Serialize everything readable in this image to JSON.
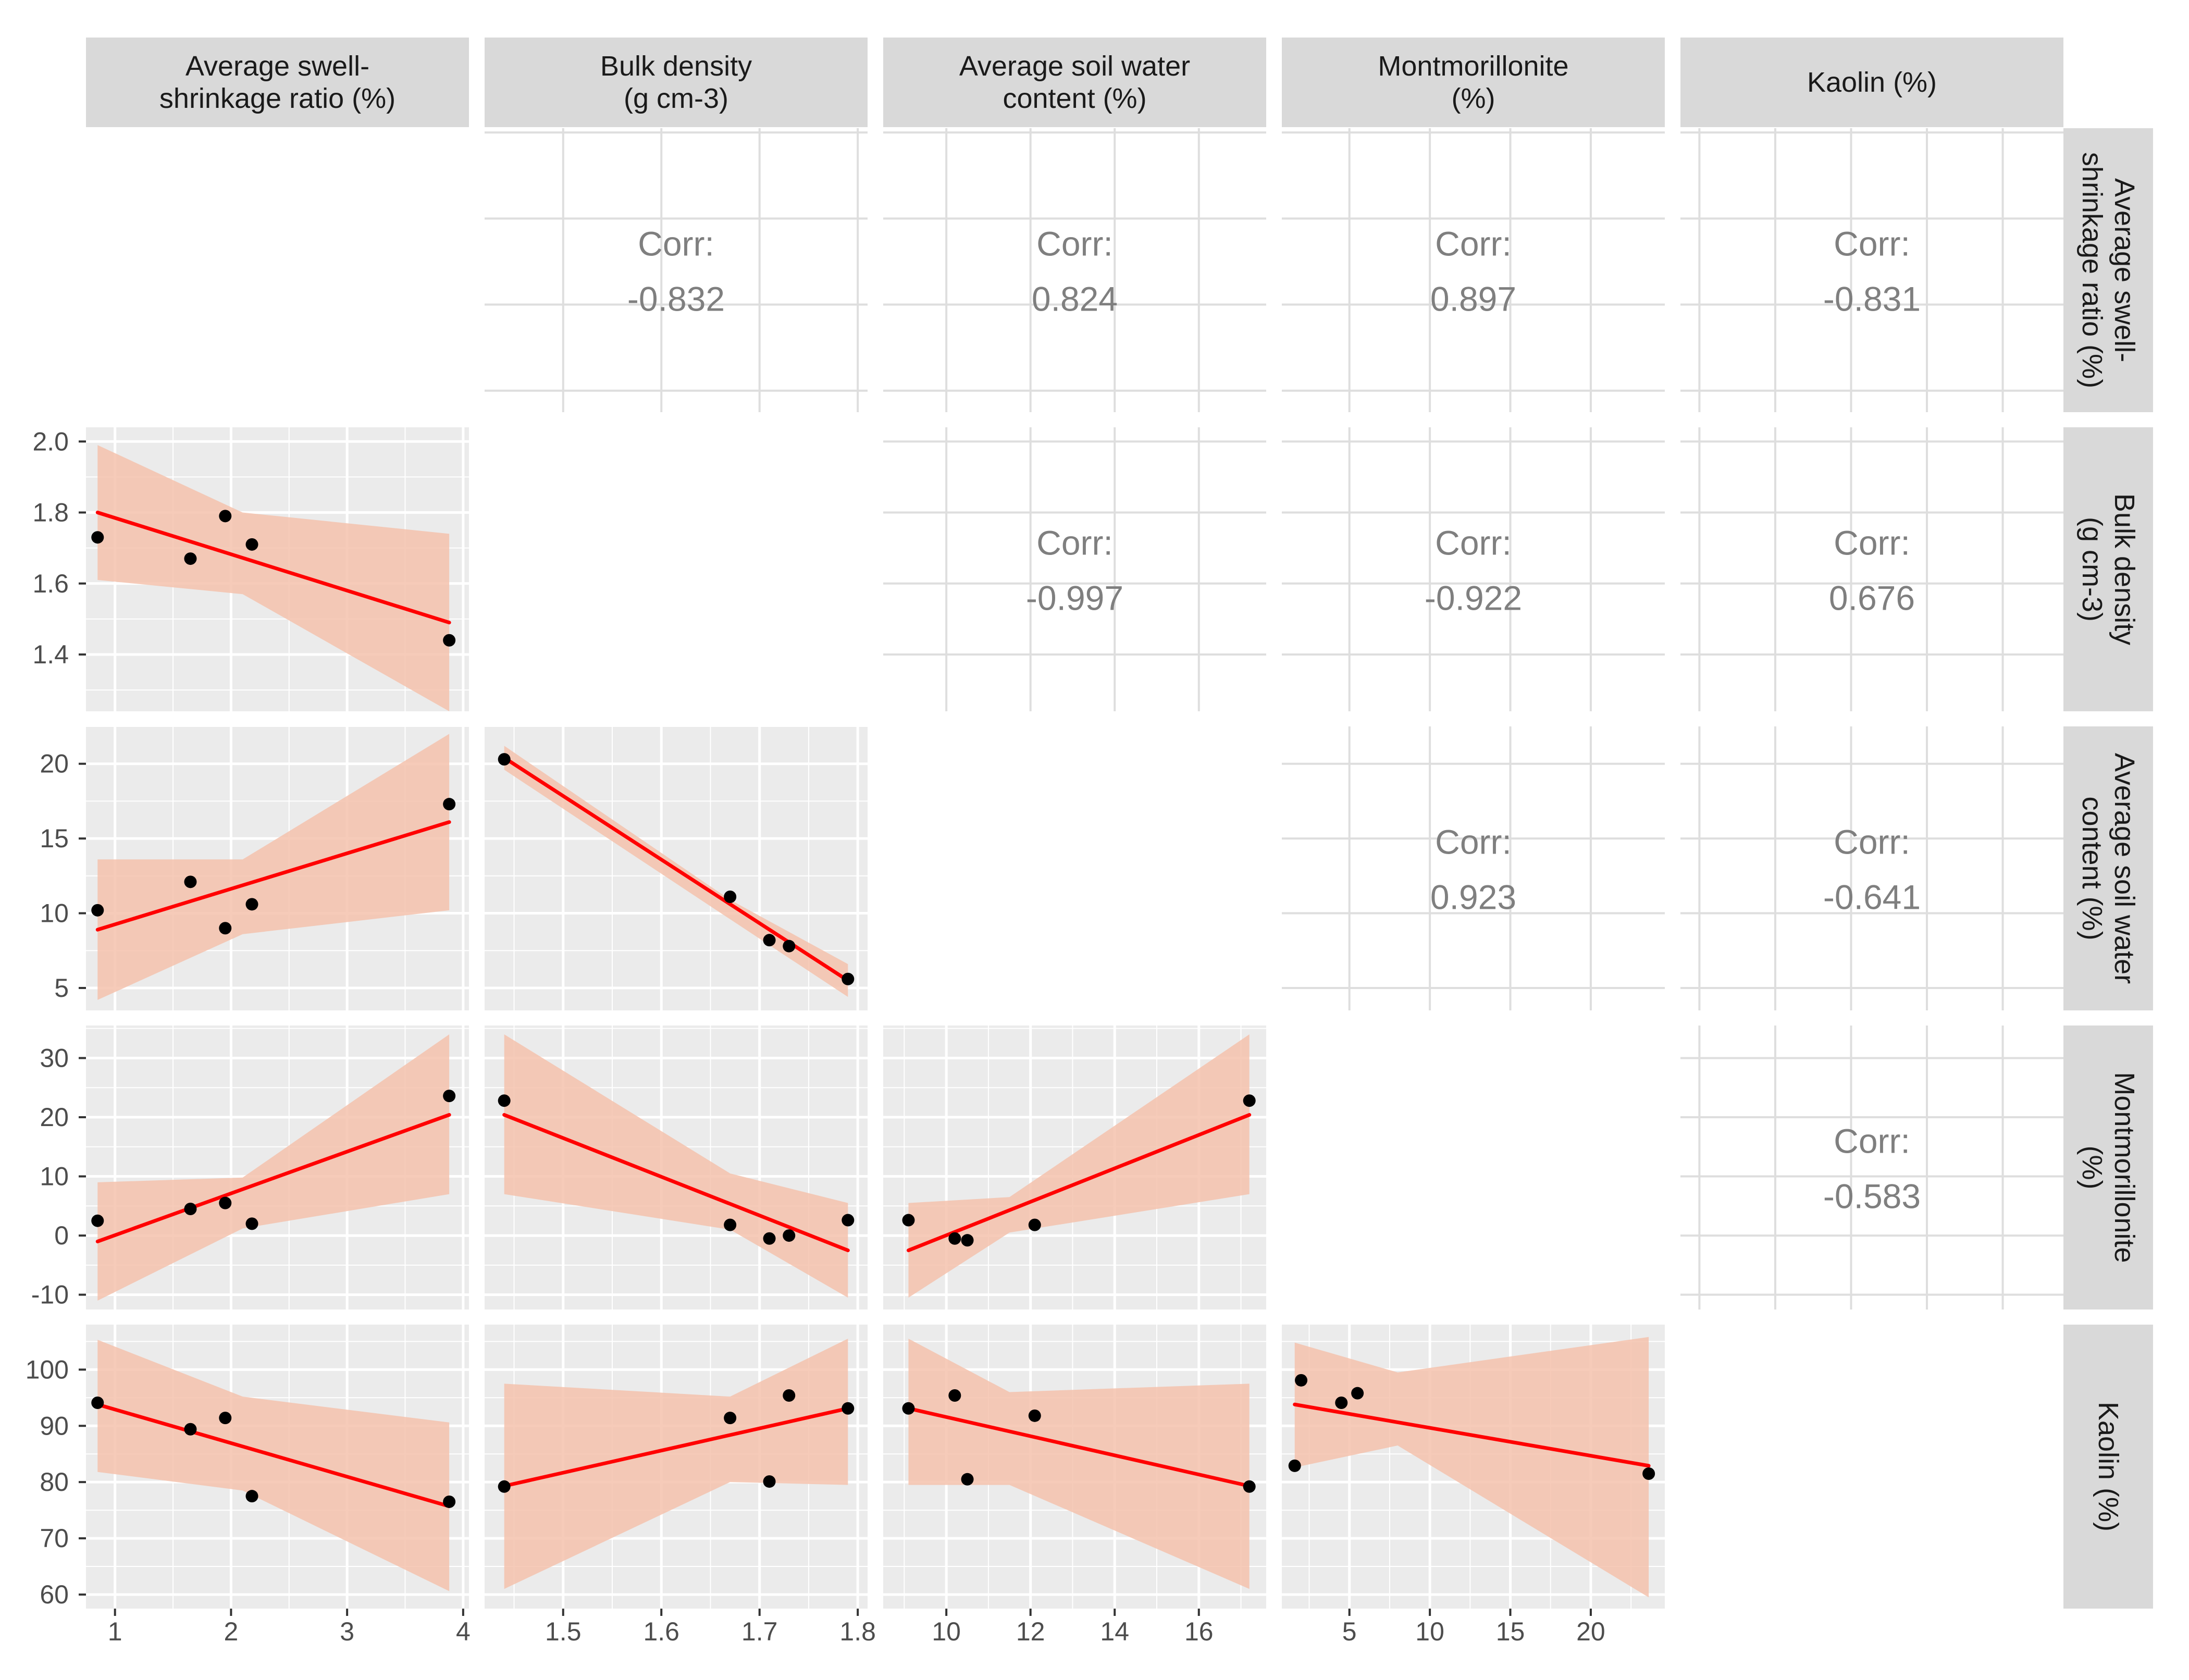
{
  "chart_data": {
    "type": "scatter-matrix",
    "title": "",
    "variables": [
      {
        "label": "Average swell-\nshrinkage ratio (%)",
        "row_label": "Average swell-\nshrinkage ratio (%)",
        "range": [
          0.75,
          4.05
        ],
        "ticks": [
          1,
          2,
          3,
          4
        ],
        "tick_labels": [
          "1",
          "2",
          "3",
          "4"
        ]
      },
      {
        "label": "Bulk density\n(g cm-3)",
        "row_label": "Bulk density\n(g cm-3)",
        "range": [
          1.24,
          2.04
        ],
        "ticks": [
          1.4,
          1.6,
          1.8,
          2.0
        ],
        "tick_labels": [
          "1.4",
          "1.6",
          "1.8",
          "2.0"
        ],
        "x_range": [
          1.42,
          1.81
        ],
        "x_ticks": [
          1.5,
          1.6,
          1.7,
          1.8
        ],
        "x_tick_labels": [
          "1.5",
          "1.6",
          "1.7",
          "1.8"
        ]
      },
      {
        "label": "Average soil water\ncontent (%)",
        "row_label": "Average soil water\ncontent (%)",
        "range": [
          3.5,
          22.5
        ],
        "ticks": [
          5,
          10,
          15,
          20
        ],
        "tick_labels": [
          "5",
          "10",
          "15",
          "20"
        ],
        "x_range": [
          8.5,
          17.6
        ],
        "x_ticks": [
          10,
          12,
          14,
          16
        ],
        "x_tick_labels": [
          "10",
          "12",
          "14",
          "16"
        ]
      },
      {
        "label": "Montmorillonite\n(%)",
        "row_label": "Montmorillonite\n(%)",
        "range": [
          -12.5,
          35.5
        ],
        "ticks": [
          -10,
          0,
          10,
          20,
          30
        ],
        "tick_labels": [
          "-10",
          "0",
          "10",
          "20",
          "30"
        ],
        "x_range": [
          0.8,
          24.6
        ],
        "x_ticks": [
          5,
          10,
          15,
          20
        ],
        "x_tick_labels": [
          "5",
          "10",
          "15",
          "20"
        ]
      },
      {
        "label": "Kaolin (%)",
        "row_label": "Kaolin (%)",
        "range": [
          57.5,
          108
        ],
        "ticks": [
          60,
          70,
          80,
          90,
          100
        ],
        "tick_labels": [
          "60",
          "70",
          "80",
          "90",
          "100"
        ]
      }
    ],
    "correlations": [
      {
        "row": 0,
        "col": 1,
        "label": "Corr:",
        "value": "-0.832"
      },
      {
        "row": 0,
        "col": 2,
        "label": "Corr:",
        "value": "0.824"
      },
      {
        "row": 0,
        "col": 3,
        "label": "Corr:",
        "value": "0.897"
      },
      {
        "row": 0,
        "col": 4,
        "label": "Corr:",
        "value": "-0.831"
      },
      {
        "row": 1,
        "col": 2,
        "label": "Corr:",
        "value": "-0.997"
      },
      {
        "row": 1,
        "col": 3,
        "label": "Corr:",
        "value": "-0.922"
      },
      {
        "row": 1,
        "col": 4,
        "label": "Corr:",
        "value": "0.676"
      },
      {
        "row": 2,
        "col": 3,
        "label": "Corr:",
        "value": "0.923"
      },
      {
        "row": 2,
        "col": 4,
        "label": "Corr:",
        "value": "-0.641"
      },
      {
        "row": 3,
        "col": 4,
        "label": "Corr:",
        "value": "-0.583"
      }
    ],
    "scatter_panels": [
      {
        "row": 1,
        "col": 0,
        "points": [
          [
            0.85,
            1.73
          ],
          [
            1.65,
            1.67
          ],
          [
            1.95,
            1.79
          ],
          [
            2.18,
            1.71
          ],
          [
            3.88,
            1.44
          ]
        ],
        "fit": [
          [
            0.85,
            1.8
          ],
          [
            3.88,
            1.49
          ]
        ],
        "band_upper": [
          [
            0.85,
            1.99
          ],
          [
            2.1,
            1.8
          ],
          [
            3.88,
            1.74
          ]
        ],
        "band_lower": [
          [
            0.85,
            1.61
          ],
          [
            2.1,
            1.57
          ],
          [
            3.88,
            1.24
          ]
        ]
      },
      {
        "row": 2,
        "col": 0,
        "points": [
          [
            0.85,
            10.2
          ],
          [
            1.65,
            12.1
          ],
          [
            1.95,
            9.0
          ],
          [
            2.18,
            10.6
          ],
          [
            3.88,
            17.3
          ]
        ],
        "fit": [
          [
            0.85,
            8.9
          ],
          [
            3.88,
            16.1
          ]
        ],
        "band_upper": [
          [
            0.85,
            13.6
          ],
          [
            2.1,
            13.6
          ],
          [
            3.88,
            22.0
          ]
        ],
        "band_lower": [
          [
            0.85,
            4.2
          ],
          [
            2.1,
            8.6
          ],
          [
            3.88,
            10.2
          ]
        ]
      },
      {
        "row": 2,
        "col": 1,
        "points": [
          [
            1.44,
            20.3
          ],
          [
            1.67,
            11.1
          ],
          [
            1.71,
            8.2
          ],
          [
            1.73,
            7.8
          ],
          [
            1.79,
            5.6
          ]
        ],
        "fit": [
          [
            1.44,
            20.4
          ],
          [
            1.79,
            5.5
          ]
        ],
        "band_upper": [
          [
            1.44,
            21.2
          ],
          [
            1.67,
            10.9
          ],
          [
            1.79,
            6.6
          ]
        ],
        "band_lower": [
          [
            1.44,
            19.6
          ],
          [
            1.67,
            9.6
          ],
          [
            1.79,
            4.4
          ]
        ]
      },
      {
        "row": 3,
        "col": 0,
        "points": [
          [
            0.85,
            2.5
          ],
          [
            1.65,
            4.5
          ],
          [
            1.95,
            5.5
          ],
          [
            2.18,
            2.0
          ],
          [
            3.88,
            23.6
          ]
        ],
        "fit": [
          [
            0.85,
            -1.0
          ],
          [
            3.88,
            20.4
          ]
        ],
        "band_upper": [
          [
            0.85,
            9.0
          ],
          [
            2.1,
            9.8
          ],
          [
            3.88,
            34.0
          ]
        ],
        "band_lower": [
          [
            0.85,
            -11.0
          ],
          [
            2.1,
            1.2
          ],
          [
            3.88,
            7.0
          ]
        ]
      },
      {
        "row": 3,
        "col": 1,
        "points": [
          [
            1.44,
            22.8
          ],
          [
            1.67,
            1.8
          ],
          [
            1.71,
            -0.5
          ],
          [
            1.73,
            0.0
          ],
          [
            1.79,
            2.6
          ]
        ],
        "fit": [
          [
            1.44,
            20.4
          ],
          [
            1.79,
            -2.5
          ]
        ],
        "band_upper": [
          [
            1.44,
            34.0
          ],
          [
            1.67,
            10.5
          ],
          [
            1.79,
            5.5
          ]
        ],
        "band_lower": [
          [
            1.44,
            7.0
          ],
          [
            1.67,
            1.0
          ],
          [
            1.79,
            -10.5
          ]
        ]
      },
      {
        "row": 3,
        "col": 2,
        "points": [
          [
            9.1,
            2.6
          ],
          [
            10.2,
            -0.5
          ],
          [
            10.5,
            -0.8
          ],
          [
            12.1,
            1.8
          ],
          [
            17.2,
            22.8
          ]
        ],
        "fit": [
          [
            9.1,
            -2.5
          ],
          [
            17.2,
            20.4
          ]
        ],
        "band_upper": [
          [
            9.1,
            5.5
          ],
          [
            11.5,
            6.5
          ],
          [
            17.2,
            34.0
          ]
        ],
        "band_lower": [
          [
            9.1,
            -10.5
          ],
          [
            11.5,
            0.5
          ],
          [
            17.2,
            7.0
          ]
        ]
      },
      {
        "row": 4,
        "col": 0,
        "points": [
          [
            0.85,
            94.1
          ],
          [
            1.65,
            89.4
          ],
          [
            1.95,
            91.4
          ],
          [
            2.18,
            77.5
          ],
          [
            3.88,
            76.5
          ]
        ],
        "fit": [
          [
            0.85,
            93.8
          ],
          [
            3.88,
            75.7
          ]
        ],
        "band_upper": [
          [
            0.85,
            105.3
          ],
          [
            2.1,
            95.2
          ],
          [
            3.88,
            90.6
          ]
        ],
        "band_lower": [
          [
            0.85,
            81.8
          ],
          [
            2.1,
            78.5
          ],
          [
            3.88,
            60.6
          ]
        ]
      },
      {
        "row": 4,
        "col": 1,
        "points": [
          [
            1.44,
            79.2
          ],
          [
            1.67,
            91.4
          ],
          [
            1.71,
            80.1
          ],
          [
            1.73,
            95.4
          ],
          [
            1.79,
            93.1
          ]
        ],
        "fit": [
          [
            1.44,
            79.3
          ],
          [
            1.79,
            93.1
          ]
        ],
        "band_upper": [
          [
            1.44,
            97.5
          ],
          [
            1.67,
            95.2
          ],
          [
            1.79,
            105.5
          ]
        ],
        "band_lower": [
          [
            1.44,
            61.0
          ],
          [
            1.67,
            80.0
          ],
          [
            1.79,
            79.5
          ]
        ]
      },
      {
        "row": 4,
        "col": 2,
        "points": [
          [
            9.1,
            93.1
          ],
          [
            10.2,
            95.4
          ],
          [
            10.5,
            80.5
          ],
          [
            12.1,
            91.8
          ],
          [
            17.2,
            79.2
          ]
        ],
        "fit": [
          [
            9.1,
            93.1
          ],
          [
            17.2,
            79.3
          ]
        ],
        "band_upper": [
          [
            9.1,
            105.5
          ],
          [
            11.5,
            96.0
          ],
          [
            17.2,
            97.5
          ]
        ],
        "band_lower": [
          [
            9.1,
            79.5
          ],
          [
            11.5,
            79.5
          ],
          [
            17.2,
            61.0
          ]
        ]
      },
      {
        "row": 4,
        "col": 3,
        "points": [
          [
            1.6,
            82.9
          ],
          [
            2.0,
            98.1
          ],
          [
            4.5,
            94.1
          ],
          [
            5.5,
            95.8
          ],
          [
            23.6,
            81.5
          ]
        ],
        "fit": [
          [
            1.6,
            93.8
          ],
          [
            23.6,
            82.9
          ]
        ],
        "band_upper": [
          [
            1.6,
            104.8
          ],
          [
            8.0,
            99.5
          ],
          [
            23.6,
            105.8
          ]
        ],
        "band_lower": [
          [
            1.6,
            82.6
          ],
          [
            8.0,
            86.5
          ],
          [
            23.6,
            59.5
          ]
        ]
      }
    ],
    "colors": {
      "panel_bg": "#ebebeb",
      "grid": "#ffffff",
      "strip_bg": "#d9d9d9",
      "point": "#000000",
      "fit_line": "#ff0000",
      "band": "#f4c2ad",
      "corr_text": "#7f7f7f",
      "upper_grid": "#dedede"
    }
  }
}
